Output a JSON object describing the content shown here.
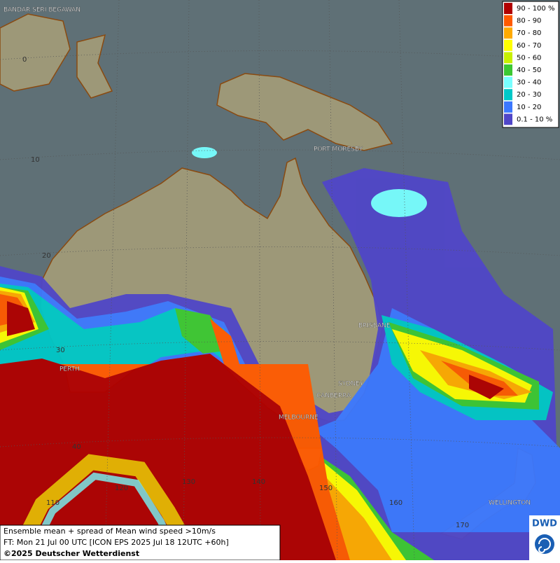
{
  "legend": {
    "items": [
      {
        "label": "90 - 100 %",
        "color": "#b00000"
      },
      {
        "label": "80 - 90",
        "color": "#ff5a00"
      },
      {
        "label": "70 - 80",
        "color": "#ffaa00"
      },
      {
        "label": "60 - 70",
        "color": "#ffff00"
      },
      {
        "label": "50 - 60",
        "color": "#c8f000"
      },
      {
        "label": "40 - 50",
        "color": "#3cc832"
      },
      {
        "label": "30 - 40",
        "color": "#78ffff"
      },
      {
        "label": "20 - 30",
        "color": "#00c8c8"
      },
      {
        "label": "10 - 20",
        "color": "#3c78ff"
      },
      {
        "label": "0.1 - 10 %",
        "color": "#5046c8"
      }
    ]
  },
  "cities": [
    "BANDAR SERI BEGAWAN",
    "PORT MORESBY",
    "BRISBANE",
    "PERTH",
    "SYDNEY",
    "CANBERRA",
    "MELBOURNE",
    "WELLINGTON"
  ],
  "grid_labels": [
    "0",
    "10",
    "20",
    "30",
    "40",
    "110",
    "120",
    "130",
    "140",
    "150",
    "160",
    "170"
  ],
  "footer": {
    "line1": "Ensemble mean + spread of Mean wind speed >10m/s",
    "line2": "FT: Mon 21 Jul 00 UTC [ICON EPS 2025 Jul 18 12UTC +60h]",
    "line3": "©2025 Deutscher Wetterdienst"
  },
  "logo": "DWD"
}
